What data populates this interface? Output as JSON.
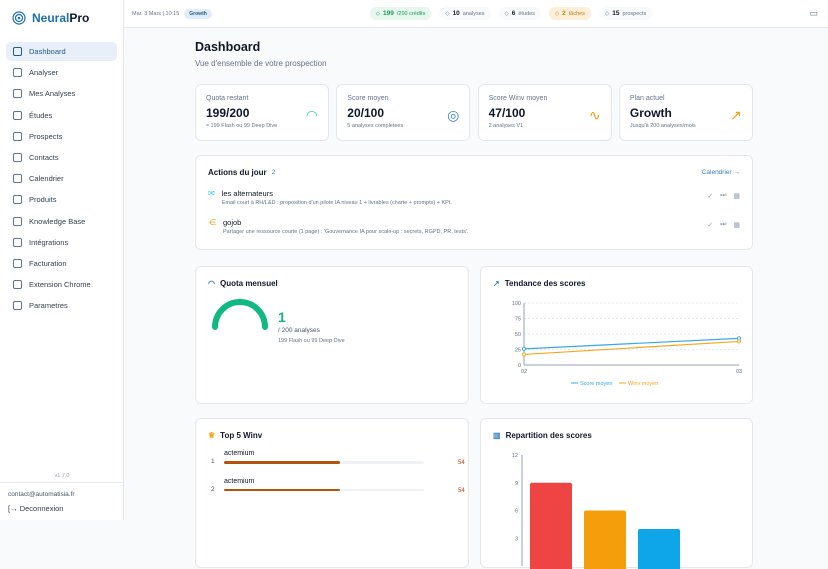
{
  "app": {
    "brand_a": "Neural",
    "brand_b": "Pro",
    "version": "v1.7.0",
    "email": "contact@automatisia.fr",
    "logout": "Deconnexion"
  },
  "sidebar": {
    "items": [
      {
        "label": "Dashboard",
        "icon": "dashboard-icon",
        "active": true
      },
      {
        "label": "Analyser",
        "icon": "search-icon"
      },
      {
        "label": "Mes Analyses",
        "icon": "history-icon"
      },
      {
        "label": "Études",
        "icon": "bar-chart-icon"
      },
      {
        "label": "Prospects",
        "icon": "users-icon"
      },
      {
        "label": "Contacts",
        "icon": "mail-icon"
      },
      {
        "label": "Calendrier",
        "icon": "calendar-icon"
      },
      {
        "label": "Produits",
        "icon": "box-icon"
      },
      {
        "label": "Knowledge Base",
        "icon": "book-icon"
      },
      {
        "label": "Intégrations",
        "icon": "plug-icon"
      },
      {
        "label": "Facturation",
        "icon": "credit-card-icon"
      },
      {
        "label": "Extension Chrome",
        "icon": "puzzle-icon"
      },
      {
        "label": "Parametres",
        "icon": "gear-icon"
      }
    ]
  },
  "topbar": {
    "date": "Mar. 3 Mars | 10:15",
    "plan": "Growth",
    "pills": [
      {
        "value": "199",
        "label": "/200 crédits",
        "bg": "#e7f7ef",
        "color": "#16a34a"
      },
      {
        "value": "10",
        "label": "analyses",
        "bg": "#f8fafc",
        "color": "#64748b"
      },
      {
        "value": "6",
        "label": "études",
        "bg": "#f8fafc",
        "color": "#64748b"
      },
      {
        "value": "2",
        "label": "tâches",
        "bg": "#fdefd9",
        "color": "#d97706"
      },
      {
        "value": "15",
        "label": "prospects",
        "bg": "#f8fafc",
        "color": "#64748b"
      }
    ]
  },
  "header": {
    "title": "Dashboard",
    "subtitle": "Vue d'ensemble de votre prospection"
  },
  "kpis": [
    {
      "label": "Quota restant",
      "value": "199/200",
      "sub": "≈ 199 Flash ou 99 Deep Dive",
      "icon": "gauge-icon",
      "color": "#34d399"
    },
    {
      "label": "Score moyen",
      "value": "20/100",
      "sub": "5 analyses completees",
      "icon": "target-icon",
      "color": "#3b82c4"
    },
    {
      "label": "Score Winv moyen",
      "value": "47/100",
      "sub": "2 analyses V1",
      "icon": "activity-icon",
      "color": "#f59e0b"
    },
    {
      "label": "Plan actuel",
      "value": "Growth",
      "sub": "Jusqu'à 200 analyses/mois",
      "icon": "trending-up-icon",
      "color": "#f59e0b"
    }
  ],
  "actions": {
    "title": "Actions du jour",
    "count": "2",
    "link": "Calendrier →",
    "items": [
      {
        "title": "les alternateurs",
        "desc": "Email court à RH/L&D : proposition d'un pilote IA niveau 1 + livrables (charte + prompts) + KPI.",
        "icon": "mail-icon",
        "color": "#38bdf8"
      },
      {
        "title": "gojob",
        "desc": "Partager une ressource courte (1 page) : 'Gouvernance IA pour scale-up : secrets, RGPD, PR, tests'.",
        "icon": "share-icon",
        "color": "#f59e0b"
      }
    ]
  },
  "quota": {
    "title": "Quota mensuel",
    "value": "1",
    "unit": "/ 200 analyses",
    "sub": "199 Flash ou 99 Deep Dive",
    "gauge_fraction": 0.75,
    "color": "#10b981"
  },
  "top5": {
    "title": "Top 5 Winv",
    "items": [
      {
        "rank": "1",
        "name": "actemium",
        "score": 54
      },
      {
        "rank": "2",
        "name": "actemium",
        "score": 54
      }
    ]
  },
  "chart_data": [
    {
      "type": "line",
      "title": "Tendance des scores",
      "categories": [
        "02",
        "03"
      ],
      "ylim": [
        0,
        100
      ],
      "yticks": [
        0,
        25,
        50,
        75,
        100
      ],
      "grid": true,
      "legend": "bottom",
      "series": [
        {
          "name": "Score moyen",
          "values": [
            26,
            43
          ],
          "color": "#38a9e4"
        },
        {
          "name": "Winv moyen",
          "values": [
            17,
            38
          ],
          "color": "#f5a623"
        }
      ]
    },
    {
      "type": "bar",
      "title": "Repartition des scores",
      "ylim": [
        0,
        12
      ],
      "yticks": [
        3,
        6,
        9,
        12
      ],
      "values": [
        9,
        6,
        4
      ],
      "colors": [
        "#ef4444",
        "#f59e0b",
        "#0ea5e9"
      ]
    }
  ]
}
